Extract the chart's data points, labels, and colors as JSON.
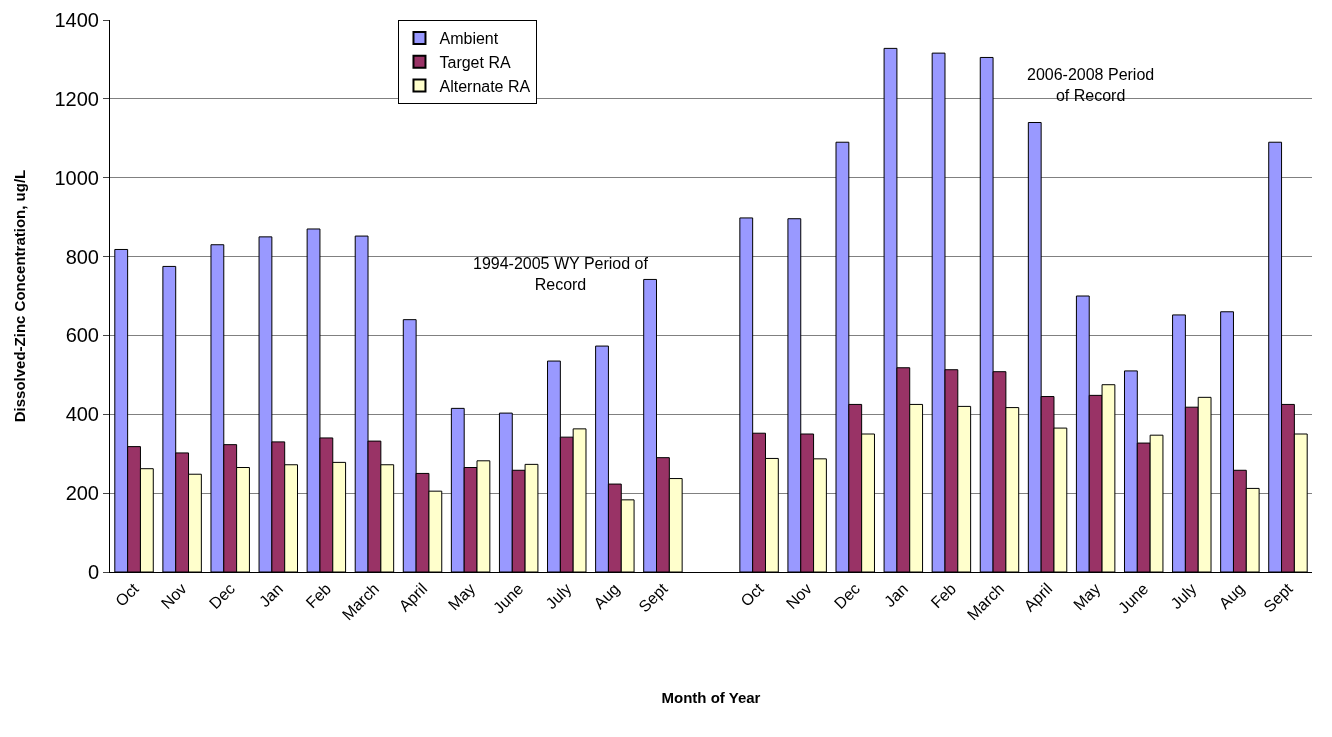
{
  "chart_data": {
    "type": "bar",
    "xlabel": "Month of Year",
    "ylabel": "Dissolved-Zinc Concentration, ug/L",
    "categories": [
      "Oct",
      "Nov",
      "Dec",
      "Jan",
      "Feb",
      "March",
      "April",
      "May",
      "June",
      "July",
      "Aug",
      "Sept",
      null,
      "Oct",
      "Nov",
      "Dec",
      "Jan",
      "Feb",
      "March",
      "April",
      "May",
      "June",
      "July",
      "Aug",
      "Sept"
    ],
    "series": [
      {
        "name": "Ambient",
        "color": "#9999ff",
        "values": [
          818,
          775,
          830,
          850,
          870,
          852,
          640,
          415,
          403,
          535,
          573,
          742,
          null,
          898,
          896,
          1090,
          1328,
          1316,
          1305,
          1140,
          700,
          510,
          652,
          660,
          1090
        ]
      },
      {
        "name": "Target RA",
        "color": "#993366",
        "values": [
          318,
          302,
          323,
          330,
          340,
          332,
          250,
          265,
          258,
          342,
          223,
          290,
          null,
          352,
          350,
          425,
          518,
          513,
          508,
          445,
          448,
          327,
          418,
          258,
          425
        ]
      },
      {
        "name": "Alternate RA",
        "color": "#ffffcc",
        "values": [
          262,
          248,
          265,
          272,
          278,
          272,
          205,
          282,
          273,
          363,
          183,
          237,
          null,
          288,
          287,
          350,
          425,
          420,
          417,
          365,
          475,
          347,
          443,
          212,
          350
        ]
      }
    ],
    "ylim": [
      0,
      1400
    ],
    "yticks": [
      0,
      200,
      400,
      600,
      800,
      1000,
      1200,
      1400
    ],
    "grid": "y",
    "legend": "top center",
    "annotations": [
      "1994-2005 WY Period of\nRecord",
      "2006-2008 Period\nof Record"
    ]
  }
}
